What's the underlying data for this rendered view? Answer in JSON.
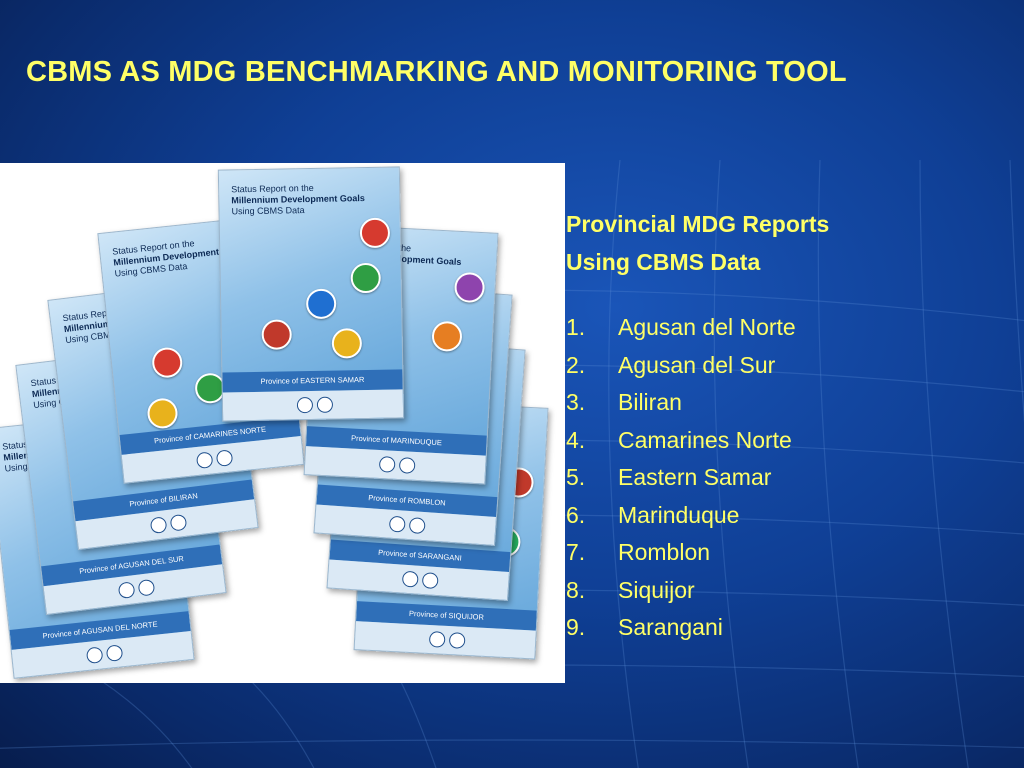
{
  "title": "CBMS AS MDG BENCHMARKING AND MONITORING TOOL",
  "subtitle_lines": [
    "Provincial MDG Reports",
    "Using CBMS Data"
  ],
  "provinces": [
    {
      "num": "1.",
      "name": "Agusan del Norte"
    },
    {
      "num": "2.",
      "name": "Agusan del Sur"
    },
    {
      "num": "3.",
      "name": "Biliran"
    },
    {
      "num": "4.",
      "name": "Camarines Norte"
    },
    {
      "num": "5.",
      "name": "Eastern Samar"
    },
    {
      "num": "6.",
      "name": "Marinduque"
    },
    {
      "num": "7.",
      "name": "Romblon"
    },
    {
      "num": "8.",
      "name": "Siquijor"
    },
    {
      "num": "9.",
      "name": "Sarangani"
    }
  ],
  "photo": {
    "cover_title": [
      "Status Report on the",
      "Millennium Development Goals",
      "Using CBMS Data"
    ],
    "covers": [
      {
        "province": "Province of AGUSAN DEL NORTE"
      },
      {
        "province": "Province of AGUSAN DEL SUR"
      },
      {
        "province": "Province of BILIRAN"
      },
      {
        "province": "Province of CAMARINES NORTE"
      },
      {
        "province": "Province of EASTERN SAMAR"
      },
      {
        "province": "Province of MARINDUQUE"
      },
      {
        "province": "Province of ROMBLON"
      },
      {
        "province": "Province of SARANGANI"
      },
      {
        "province": "Province of SIQUIJOR"
      }
    ]
  },
  "colors": {
    "title": "#ffff66",
    "text": "#ffff66",
    "background": "#0f3f95"
  }
}
